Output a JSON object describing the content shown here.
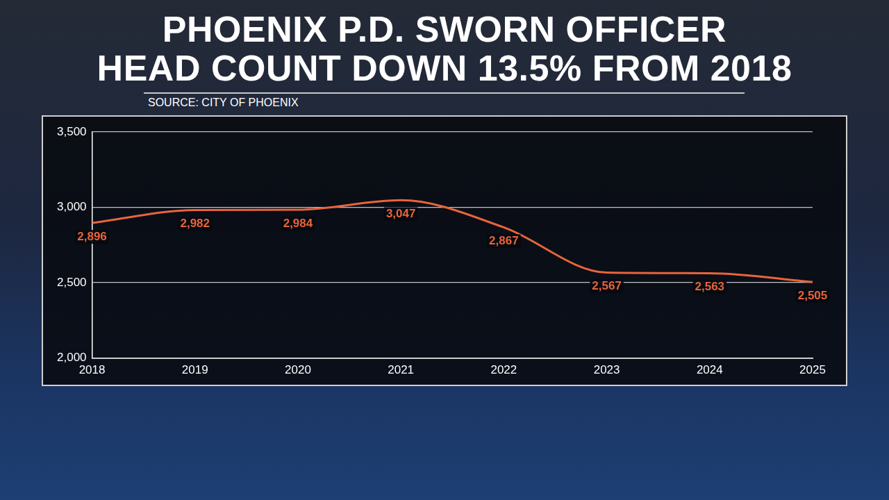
{
  "chart_data": {
    "type": "line",
    "title": "PHOENIX P.D. SWORN OFFICER HEAD COUNT DOWN 13.5% FROM 2018",
    "source": "SOURCE: CITY OF PHOENIX",
    "categories": [
      "2018",
      "2019",
      "2020",
      "2021",
      "2022",
      "2023",
      "2024",
      "2025"
    ],
    "values": [
      2896,
      2982,
      2984,
      3047,
      2867,
      2567,
      2563,
      2505
    ],
    "value_labels": [
      "2,896",
      "2,982",
      "2,984",
      "3,047",
      "2,867",
      "2,567",
      "2,563",
      "2,505"
    ],
    "color": "#e8643c",
    "ylim": [
      2000,
      3500
    ],
    "yticks": [
      {
        "value": 2000,
        "label": "2,000"
      },
      {
        "value": 2500,
        "label": "2,500"
      },
      {
        "value": 3000,
        "label": "3,000"
      },
      {
        "value": 3500,
        "label": "3,500"
      }
    ],
    "grid": true,
    "data_labels": true
  }
}
